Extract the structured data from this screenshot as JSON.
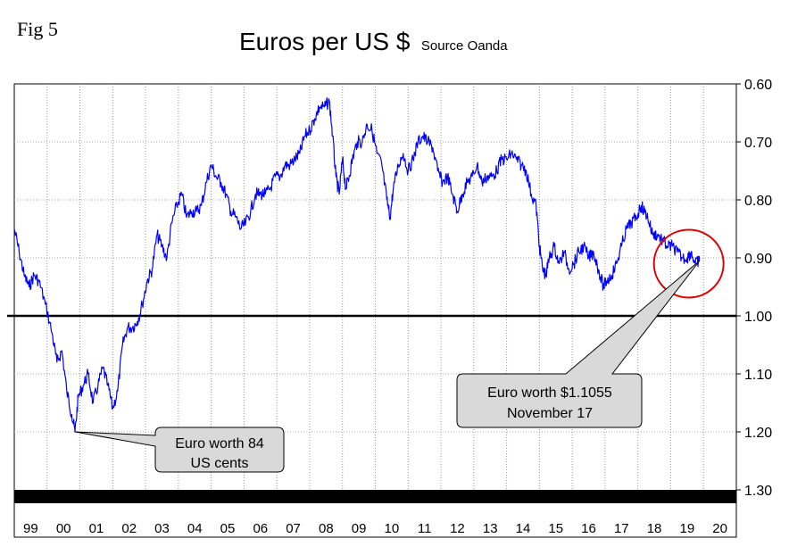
{
  "figure_label": "Fig 5",
  "chart_data": {
    "type": "line",
    "title": "Euros per US $",
    "subtitle": "Source Oanda",
    "y_axis": {
      "inverted": true,
      "range": [
        0.6,
        1.3
      ],
      "tick_values": [
        0.6,
        0.7,
        0.8,
        0.9,
        1.0,
        1.1,
        1.2,
        1.3
      ],
      "tick_labels": [
        "0.60",
        "0.70",
        "0.80",
        "0.90",
        "1.00",
        "1.10",
        "1.20",
        "1.30"
      ],
      "position": "right"
    },
    "x_axis": {
      "range": [
        1999.0,
        2021.0
      ],
      "category_labels": [
        "99",
        "00",
        "01",
        "02",
        "03",
        "04",
        "05",
        "06",
        "07",
        "08",
        "09",
        "10",
        "11",
        "12",
        "13",
        "14",
        "15",
        "16",
        "17",
        "18",
        "19",
        "20"
      ]
    },
    "grid": "vertical dotted",
    "reference_line": 1.0,
    "series": [
      {
        "name": "Euros per US $",
        "color": "#0000ff",
        "points": [
          [
            1999.0,
            0.85
          ],
          [
            1999.15,
            0.89
          ],
          [
            1999.3,
            0.93
          ],
          [
            1999.45,
            0.95
          ],
          [
            1999.6,
            0.93
          ],
          [
            1999.75,
            0.94
          ],
          [
            1999.95,
            0.98
          ],
          [
            2000.15,
            1.03
          ],
          [
            2000.3,
            1.08
          ],
          [
            2000.45,
            1.06
          ],
          [
            2000.6,
            1.13
          ],
          [
            2000.75,
            1.17
          ],
          [
            2000.85,
            1.2
          ],
          [
            2000.95,
            1.14
          ],
          [
            2001.1,
            1.12
          ],
          [
            2001.25,
            1.1
          ],
          [
            2001.4,
            1.15
          ],
          [
            2001.55,
            1.12
          ],
          [
            2001.7,
            1.09
          ],
          [
            2001.85,
            1.12
          ],
          [
            2002.0,
            1.16
          ],
          [
            2002.15,
            1.13
          ],
          [
            2002.3,
            1.05
          ],
          [
            2002.45,
            1.02
          ],
          [
            2002.6,
            1.02
          ],
          [
            2002.75,
            1.01
          ],
          [
            2002.9,
            0.98
          ],
          [
            2003.05,
            0.94
          ],
          [
            2003.2,
            0.92
          ],
          [
            2003.35,
            0.86
          ],
          [
            2003.5,
            0.88
          ],
          [
            2003.65,
            0.9
          ],
          [
            2003.8,
            0.84
          ],
          [
            2003.95,
            0.81
          ],
          [
            2004.1,
            0.79
          ],
          [
            2004.25,
            0.83
          ],
          [
            2004.4,
            0.82
          ],
          [
            2004.55,
            0.82
          ],
          [
            2004.7,
            0.81
          ],
          [
            2004.85,
            0.77
          ],
          [
            2005.0,
            0.74
          ],
          [
            2005.15,
            0.76
          ],
          [
            2005.3,
            0.77
          ],
          [
            2005.45,
            0.79
          ],
          [
            2005.6,
            0.82
          ],
          [
            2005.75,
            0.83
          ],
          [
            2005.9,
            0.85
          ],
          [
            2006.05,
            0.84
          ],
          [
            2006.2,
            0.82
          ],
          [
            2006.35,
            0.79
          ],
          [
            2006.5,
            0.79
          ],
          [
            2006.65,
            0.79
          ],
          [
            2006.8,
            0.78
          ],
          [
            2006.95,
            0.76
          ],
          [
            2007.1,
            0.76
          ],
          [
            2007.25,
            0.74
          ],
          [
            2007.4,
            0.74
          ],
          [
            2007.55,
            0.73
          ],
          [
            2007.7,
            0.72
          ],
          [
            2007.85,
            0.69
          ],
          [
            2008.0,
            0.68
          ],
          [
            2008.15,
            0.66
          ],
          [
            2008.3,
            0.64
          ],
          [
            2008.45,
            0.64
          ],
          [
            2008.6,
            0.63
          ],
          [
            2008.7,
            0.69
          ],
          [
            2008.8,
            0.76
          ],
          [
            2008.9,
            0.79
          ],
          [
            2009.0,
            0.73
          ],
          [
            2009.1,
            0.78
          ],
          [
            2009.2,
            0.76
          ],
          [
            2009.3,
            0.73
          ],
          [
            2009.45,
            0.7
          ],
          [
            2009.6,
            0.7
          ],
          [
            2009.75,
            0.67
          ],
          [
            2009.9,
            0.68
          ],
          [
            2010.05,
            0.72
          ],
          [
            2010.2,
            0.74
          ],
          [
            2010.35,
            0.8
          ],
          [
            2010.45,
            0.83
          ],
          [
            2010.55,
            0.78
          ],
          [
            2010.7,
            0.74
          ],
          [
            2010.85,
            0.72
          ],
          [
            2011.0,
            0.75
          ],
          [
            2011.15,
            0.73
          ],
          [
            2011.3,
            0.7
          ],
          [
            2011.45,
            0.69
          ],
          [
            2011.6,
            0.7
          ],
          [
            2011.75,
            0.71
          ],
          [
            2011.9,
            0.75
          ],
          [
            2012.05,
            0.77
          ],
          [
            2012.2,
            0.76
          ],
          [
            2012.35,
            0.79
          ],
          [
            2012.5,
            0.82
          ],
          [
            2012.65,
            0.79
          ],
          [
            2012.8,
            0.77
          ],
          [
            2012.95,
            0.76
          ],
          [
            2013.1,
            0.74
          ],
          [
            2013.25,
            0.77
          ],
          [
            2013.4,
            0.76
          ],
          [
            2013.55,
            0.76
          ],
          [
            2013.7,
            0.75
          ],
          [
            2013.85,
            0.73
          ],
          [
            2014.0,
            0.73
          ],
          [
            2014.15,
            0.72
          ],
          [
            2014.3,
            0.73
          ],
          [
            2014.45,
            0.74
          ],
          [
            2014.6,
            0.75
          ],
          [
            2014.75,
            0.79
          ],
          [
            2014.9,
            0.81
          ],
          [
            2015.0,
            0.88
          ],
          [
            2015.1,
            0.92
          ],
          [
            2015.2,
            0.93
          ],
          [
            2015.3,
            0.9
          ],
          [
            2015.45,
            0.88
          ],
          [
            2015.6,
            0.91
          ],
          [
            2015.75,
            0.89
          ],
          [
            2015.9,
            0.92
          ],
          [
            2016.05,
            0.91
          ],
          [
            2016.2,
            0.89
          ],
          [
            2016.35,
            0.88
          ],
          [
            2016.5,
            0.9
          ],
          [
            2016.65,
            0.89
          ],
          [
            2016.8,
            0.92
          ],
          [
            2016.95,
            0.95
          ],
          [
            2017.05,
            0.94
          ],
          [
            2017.2,
            0.93
          ],
          [
            2017.35,
            0.91
          ],
          [
            2017.5,
            0.88
          ],
          [
            2017.65,
            0.85
          ],
          [
            2017.8,
            0.84
          ],
          [
            2017.95,
            0.83
          ],
          [
            2018.1,
            0.81
          ],
          [
            2018.2,
            0.82
          ],
          [
            2018.3,
            0.83
          ],
          [
            2018.45,
            0.86
          ],
          [
            2018.6,
            0.86
          ],
          [
            2018.75,
            0.87
          ],
          [
            2018.9,
            0.88
          ],
          [
            2019.05,
            0.88
          ],
          [
            2019.2,
            0.89
          ],
          [
            2019.35,
            0.9
          ],
          [
            2019.5,
            0.9
          ],
          [
            2019.62,
            0.89
          ],
          [
            2019.75,
            0.91
          ],
          [
            2019.88,
            0.905
          ]
        ]
      }
    ],
    "annotations": [
      {
        "id": "low",
        "lines": [
          "Euro worth 84",
          "US cents"
        ],
        "target": {
          "x": 2000.85,
          "y": 1.2
        }
      },
      {
        "id": "latest",
        "lines": [
          "Euro worth $1.1055",
          "November 17"
        ],
        "target": {
          "x": 2019.88,
          "y": 0.905
        }
      }
    ],
    "highlight": {
      "label": "recent-value-circle",
      "x": 2019.55,
      "y": 0.91,
      "color": "#e00000"
    }
  }
}
